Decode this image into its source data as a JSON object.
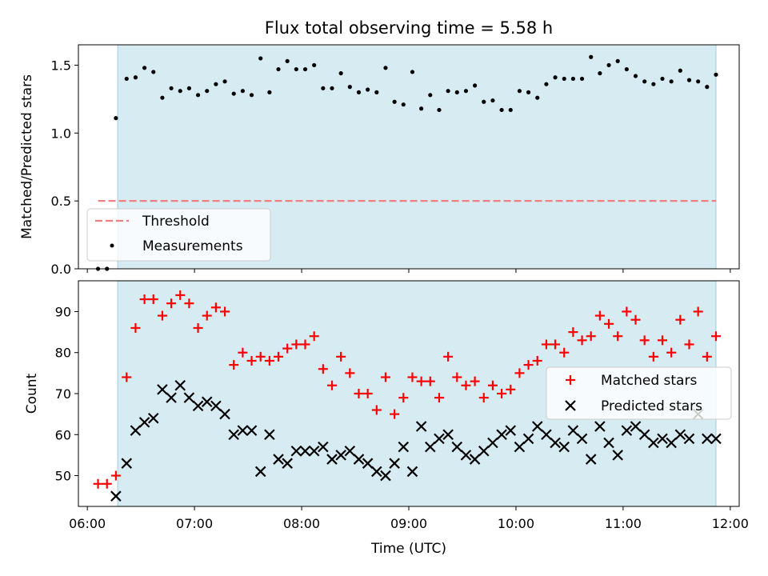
{
  "chart_data": [
    {
      "type": "scatter",
      "title": "Flux total observing time = 5.58 h",
      "xlabel": "",
      "ylabel": "Matched/Predicted stars",
      "xlim": [
        "05:55",
        "12:05"
      ],
      "ylim": [
        0,
        1.65
      ],
      "yticks": [
        0.0,
        0.5,
        1.0,
        1.5
      ],
      "ytick_labels": [
        "0.0",
        "0.5",
        "1.0",
        "1.5"
      ],
      "xticks": [
        "06:00",
        "07:00",
        "08:00",
        "09:00",
        "10:00",
        "11:00",
        "12:00"
      ],
      "grid": false,
      "legend_position": "lower-left",
      "observing_window": [
        "06:17",
        "11:52"
      ],
      "threshold": {
        "name": "Threshold",
        "value": 0.5,
        "start": "06:06",
        "end": "11:52",
        "color": "#f08080",
        "style": "dashed"
      },
      "series": [
        {
          "name": "Measurements",
          "color": "#000000",
          "marker": "dot",
          "x": [
            "06:06",
            "06:11",
            "06:16",
            "06:22",
            "06:27",
            "06:32",
            "06:37",
            "06:42",
            "06:47",
            "06:52",
            "06:57",
            "07:02",
            "07:07",
            "07:12",
            "07:17",
            "07:22",
            "07:27",
            "07:32",
            "07:37",
            "07:42",
            "07:47",
            "07:52",
            "07:57",
            "08:02",
            "08:07",
            "08:12",
            "08:17",
            "08:22",
            "08:27",
            "08:32",
            "08:37",
            "08:42",
            "08:47",
            "08:52",
            "08:57",
            "09:02",
            "09:07",
            "09:12",
            "09:17",
            "09:22",
            "09:27",
            "09:32",
            "09:37",
            "09:42",
            "09:47",
            "09:52",
            "09:57",
            "10:02",
            "10:07",
            "10:12",
            "10:17",
            "10:22",
            "10:27",
            "10:32",
            "10:37",
            "10:42",
            "10:47",
            "10:52",
            "10:57",
            "11:02",
            "11:07",
            "11:12",
            "11:17",
            "11:22",
            "11:27",
            "11:32",
            "11:37",
            "11:42",
            "11:47",
            "11:52"
          ],
          "y": [
            0.0,
            0.0,
            1.11,
            1.4,
            1.41,
            1.48,
            1.45,
            1.26,
            1.33,
            1.31,
            1.33,
            1.28,
            1.31,
            1.36,
            1.38,
            1.29,
            1.31,
            1.28,
            1.55,
            1.3,
            1.47,
            1.53,
            1.47,
            1.47,
            1.5,
            1.33,
            1.33,
            1.44,
            1.34,
            1.3,
            1.32,
            1.3,
            1.48,
            1.23,
            1.21,
            1.45,
            1.18,
            1.28,
            1.17,
            1.31,
            1.3,
            1.31,
            1.35,
            1.23,
            1.24,
            1.17,
            1.17,
            1.31,
            1.3,
            1.26,
            1.36,
            1.41,
            1.4,
            1.4,
            1.4,
            1.56,
            1.44,
            1.5,
            1.53,
            1.47,
            1.42,
            1.38,
            1.36,
            1.4,
            1.38,
            1.46,
            1.39,
            1.38,
            1.34,
            1.43
          ]
        }
      ]
    },
    {
      "type": "scatter",
      "title": "",
      "xlabel": "Time (UTC)",
      "ylabel": "Count",
      "xlim": [
        "05:55",
        "12:05"
      ],
      "ylim": [
        42.5,
        97.5
      ],
      "yticks": [
        50,
        60,
        70,
        80,
        90
      ],
      "ytick_labels": [
        "50",
        "60",
        "70",
        "80",
        "90"
      ],
      "xticks": [
        "06:00",
        "07:00",
        "08:00",
        "09:00",
        "10:00",
        "11:00",
        "12:00"
      ],
      "grid": false,
      "legend_position": "center-right",
      "observing_window": [
        "06:17",
        "11:52"
      ],
      "series": [
        {
          "name": "Matched stars",
          "color": "#ff0000",
          "marker": "plus",
          "x": [
            "06:06",
            "06:11",
            "06:16",
            "06:22",
            "06:27",
            "06:32",
            "06:37",
            "06:42",
            "06:47",
            "06:52",
            "06:57",
            "07:02",
            "07:07",
            "07:12",
            "07:17",
            "07:22",
            "07:27",
            "07:32",
            "07:37",
            "07:42",
            "07:47",
            "07:52",
            "07:57",
            "08:02",
            "08:07",
            "08:12",
            "08:17",
            "08:22",
            "08:27",
            "08:32",
            "08:37",
            "08:42",
            "08:47",
            "08:52",
            "08:57",
            "09:02",
            "09:07",
            "09:12",
            "09:17",
            "09:22",
            "09:27",
            "09:32",
            "09:37",
            "09:42",
            "09:47",
            "09:52",
            "09:57",
            "10:02",
            "10:07",
            "10:12",
            "10:17",
            "10:22",
            "10:27",
            "10:32",
            "10:37",
            "10:42",
            "10:47",
            "10:52",
            "10:57",
            "11:02",
            "11:07",
            "11:12",
            "11:17",
            "11:22",
            "11:27",
            "11:32",
            "11:37",
            "11:42",
            "11:47",
            "11:52"
          ],
          "y": [
            48,
            48,
            50,
            74,
            86,
            93,
            93,
            89,
            92,
            94,
            92,
            86,
            89,
            91,
            90,
            77,
            80,
            78,
            79,
            78,
            79,
            81,
            82,
            82,
            84,
            76,
            72,
            79,
            75,
            70,
            70,
            66,
            74,
            65,
            69,
            74,
            73,
            73,
            69,
            79,
            74,
            72,
            73,
            69,
            72,
            70,
            71,
            75,
            77,
            78,
            82,
            82,
            80,
            85,
            83,
            84,
            89,
            87,
            84,
            90,
            88,
            83,
            79,
            83,
            80,
            88,
            82,
            90,
            79,
            84
          ]
        },
        {
          "name": "Predicted stars",
          "color": "#000000",
          "marker": "x",
          "x": [
            "06:16",
            "06:22",
            "06:27",
            "06:32",
            "06:37",
            "06:42",
            "06:47",
            "06:52",
            "06:57",
            "07:02",
            "07:07",
            "07:12",
            "07:17",
            "07:22",
            "07:27",
            "07:32",
            "07:37",
            "07:42",
            "07:47",
            "07:52",
            "07:57",
            "08:02",
            "08:07",
            "08:12",
            "08:17",
            "08:22",
            "08:27",
            "08:32",
            "08:37",
            "08:42",
            "08:47",
            "08:52",
            "08:57",
            "09:02",
            "09:07",
            "09:12",
            "09:17",
            "09:22",
            "09:27",
            "09:32",
            "09:37",
            "09:42",
            "09:47",
            "09:52",
            "09:57",
            "10:02",
            "10:07",
            "10:12",
            "10:17",
            "10:22",
            "10:27",
            "10:32",
            "10:37",
            "10:42",
            "10:47",
            "10:52",
            "10:57",
            "11:02",
            "11:07",
            "11:12",
            "11:17",
            "11:22",
            "11:27",
            "11:32",
            "11:37",
            "11:42",
            "11:47",
            "11:52"
          ],
          "y": [
            45,
            53,
            61,
            63,
            64,
            71,
            69,
            72,
            69,
            67,
            68,
            67,
            65,
            60,
            61,
            61,
            51,
            60,
            54,
            53,
            56,
            56,
            56,
            57,
            54,
            55,
            56,
            54,
            53,
            51,
            50,
            53,
            57,
            51,
            62,
            57,
            59,
            60,
            57,
            55,
            54,
            56,
            58,
            60,
            61,
            57,
            59,
            62,
            60,
            58,
            57,
            61,
            59,
            54,
            62,
            58,
            55,
            61,
            62,
            60,
            58,
            59,
            58,
            60,
            59,
            65,
            59,
            59
          ]
        }
      ]
    }
  ]
}
